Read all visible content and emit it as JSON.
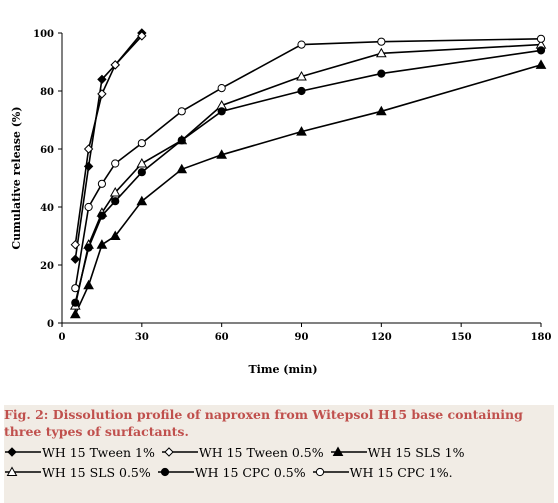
{
  "chart_data": {
    "type": "line",
    "title": "",
    "xlabel": "Time (min)",
    "ylabel": "Cumulative release (%)",
    "xlim": [
      0,
      180
    ],
    "ylim": [
      0,
      100
    ],
    "xticks": [
      "0",
      "30",
      "60",
      "90",
      "120",
      "150",
      "180"
    ],
    "yticks": [
      "0",
      "20",
      "40",
      "60",
      "80",
      "100"
    ],
    "grid": false,
    "legend_position": "below",
    "series": [
      {
        "name": "WH 15 Tween 1%",
        "marker": "diamond-filled",
        "color": "#000000",
        "x": [
          5,
          10,
          15,
          20,
          30
        ],
        "y": [
          22,
          54,
          84,
          89,
          100
        ]
      },
      {
        "name": "WH 15 Tween 0.5%",
        "marker": "diamond-open",
        "color": "#000000",
        "x": [
          5,
          10,
          15,
          20,
          30
        ],
        "y": [
          27,
          60,
          79,
          89,
          99
        ]
      },
      {
        "name": "WH 15 SLS 1%",
        "marker": "triangle-filled",
        "color": "#000000",
        "x": [
          5,
          10,
          15,
          20,
          30,
          45,
          60,
          90,
          120,
          180
        ],
        "y": [
          3,
          13,
          27,
          30,
          42,
          53,
          58,
          66,
          73,
          89
        ]
      },
      {
        "name": "WH 15 SLS 0.5%",
        "marker": "triangle-open",
        "color": "#000000",
        "x": [
          5,
          10,
          15,
          20,
          30,
          45,
          60,
          90,
          120,
          180
        ],
        "y": [
          6,
          27,
          38,
          45,
          55,
          63,
          75,
          85,
          93,
          96
        ]
      },
      {
        "name": "WH 15 CPC 0.5%",
        "marker": "circle-filled",
        "color": "#000000",
        "x": [
          5,
          10,
          15,
          20,
          30,
          45,
          60,
          90,
          120,
          180
        ],
        "y": [
          7,
          26,
          37,
          42,
          52,
          63,
          73,
          80,
          86,
          94
        ]
      },
      {
        "name": "WH 15 CPC 1%.",
        "marker": "circle-open",
        "color": "#000000",
        "x": [
          5,
          10,
          15,
          20,
          30,
          45,
          60,
          90,
          120,
          180
        ],
        "y": [
          12,
          40,
          48,
          55,
          62,
          73,
          81,
          96,
          97,
          98
        ]
      }
    ]
  },
  "caption": {
    "text": "Fig. 2: Dissolution profile of naproxen from Witepsol H15 base containing three types of surfactants.",
    "color": "#c0504d"
  }
}
